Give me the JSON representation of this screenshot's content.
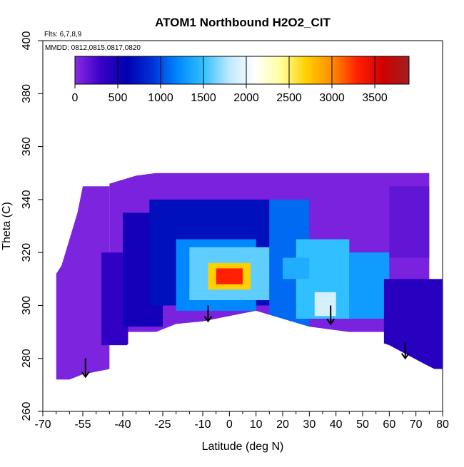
{
  "chart_data": {
    "type": "heatmap",
    "title": "ATOM1 Northbound H2O2_CIT",
    "annotations": [
      "Flts: 6,7,8,9",
      "MMDD: 0812,0815,0817,0820"
    ],
    "xlabel": "Latitude (deg N)",
    "ylabel": "Theta (C)",
    "xlim": [
      -70,
      80
    ],
    "ylim": [
      260,
      400
    ],
    "x_ticks": [
      -70,
      -55,
      -40,
      -25,
      -10,
      0,
      10,
      20,
      30,
      40,
      50,
      60,
      70,
      80
    ],
    "x_tick_labels": [
      "-70",
      "-55",
      "-40",
      "-25",
      "-10",
      "0",
      "10",
      "20",
      "30",
      "40",
      "50",
      "60",
      "70",
      "80"
    ],
    "x_minor_ticks": [
      -65,
      -60,
      -50,
      -45,
      -35,
      -30,
      -20,
      -15,
      -5,
      5,
      15,
      25,
      35,
      45,
      55,
      65,
      75
    ],
    "y_ticks": [
      260,
      280,
      300,
      320,
      340,
      360,
      380,
      400
    ],
    "y_tick_labels": [
      "260",
      "280",
      "300",
      "320",
      "340",
      "360",
      "380",
      "400"
    ],
    "colorbar": {
      "range": [
        0,
        3900
      ],
      "ticks": [
        0,
        500,
        1000,
        1500,
        2000,
        2500,
        3000,
        3500
      ],
      "tick_labels": [
        "0",
        "500",
        "1000",
        "1500",
        "2000",
        "2500",
        "3000",
        "3500"
      ],
      "stops": [
        "#8a2be2",
        "#3a00c8",
        "#0000b0",
        "#0030d8",
        "#0088ff",
        "#30c0ff",
        "#bfe8ff",
        "#ffffff",
        "#ffffa0",
        "#ffd000",
        "#ff8c00",
        "#ff2000",
        "#d00000",
        "#a02020"
      ]
    },
    "grid": false,
    "upper_boundary": [
      [
        -55,
        345
      ],
      [
        -45,
        346
      ],
      [
        -35,
        349
      ],
      [
        -20,
        351
      ],
      [
        -10,
        352
      ],
      [
        10,
        354
      ],
      [
        20,
        355
      ],
      [
        30,
        356
      ],
      [
        40,
        358
      ],
      [
        50,
        360
      ],
      [
        58,
        360
      ],
      [
        65,
        360
      ],
      [
        68,
        361
      ],
      [
        72,
        361
      ],
      [
        75,
        363
      ],
      [
        77,
        365
      ],
      [
        79,
        348
      ],
      [
        80,
        330
      ],
      [
        80,
        310
      ]
    ],
    "lower_boundary": [
      [
        80,
        310
      ],
      [
        80,
        276
      ],
      [
        77,
        276
      ],
      [
        73,
        278
      ],
      [
        60,
        285
      ],
      [
        45,
        290
      ],
      [
        30,
        292
      ],
      [
        20,
        295
      ],
      [
        10,
        298
      ],
      [
        0,
        296
      ],
      [
        -10,
        294
      ],
      [
        -20,
        293
      ],
      [
        -30,
        289
      ],
      [
        -37,
        287
      ],
      [
        -42,
        280
      ],
      [
        -45,
        276
      ],
      [
        -55,
        274
      ],
      [
        -60,
        272
      ],
      [
        -65,
        272
      ],
      [
        -65,
        312
      ],
      [
        -63,
        315
      ],
      [
        -60,
        325
      ],
      [
        -57,
        335
      ],
      [
        -55,
        345
      ]
    ],
    "cells": [
      {
        "x": [
          -65,
          -45
        ],
        "y": [
          272,
          345
        ],
        "value": 50
      },
      {
        "x": [
          -45,
          75
        ],
        "y": [
          290,
          350
        ],
        "value": 60
      },
      {
        "x": [
          -48,
          -38
        ],
        "y": [
          285,
          320
        ],
        "value": 350
      },
      {
        "x": [
          -40,
          -25
        ],
        "y": [
          292,
          335
        ],
        "value": 500
      },
      {
        "x": [
          -30,
          15
        ],
        "y": [
          300,
          340
        ],
        "value": 700
      },
      {
        "x": [
          -20,
          10
        ],
        "y": [
          298,
          325
        ],
        "value": 1200
      },
      {
        "x": [
          -15,
          15
        ],
        "y": [
          302,
          322
        ],
        "value": 1600
      },
      {
        "x": [
          15,
          30
        ],
        "y": [
          292,
          340
        ],
        "value": 1100
      },
      {
        "x": [
          25,
          45
        ],
        "y": [
          295,
          325
        ],
        "value": 1500
      },
      {
        "x": [
          45,
          60
        ],
        "y": [
          295,
          320
        ],
        "value": 1300
      },
      {
        "x": [
          -8,
          8
        ],
        "y": [
          306,
          316
        ],
        "value": 2700
      },
      {
        "x": [
          -5,
          5
        ],
        "y": [
          308,
          314
        ],
        "value": 3300
      },
      {
        "x": [
          32,
          40
        ],
        "y": [
          296,
          305
        ],
        "value": 1900
      },
      {
        "x": [
          20,
          30
        ],
        "y": [
          310,
          318
        ],
        "value": 1400
      },
      {
        "x": [
          58,
          80
        ],
        "y": [
          276,
          310
        ],
        "value": 400
      },
      {
        "x": [
          60,
          75
        ],
        "y": [
          318,
          345
        ],
        "value": 150
      }
    ],
    "arrows": [
      {
        "x": -54,
        "y_top": 280,
        "y_bottom": 273
      },
      {
        "x": -8,
        "y_top": 300,
        "y_bottom": 294
      },
      {
        "x": 38,
        "y_top": 300,
        "y_bottom": 293
      },
      {
        "x": 66,
        "y_top": 286,
        "y_bottom": 280
      }
    ]
  }
}
